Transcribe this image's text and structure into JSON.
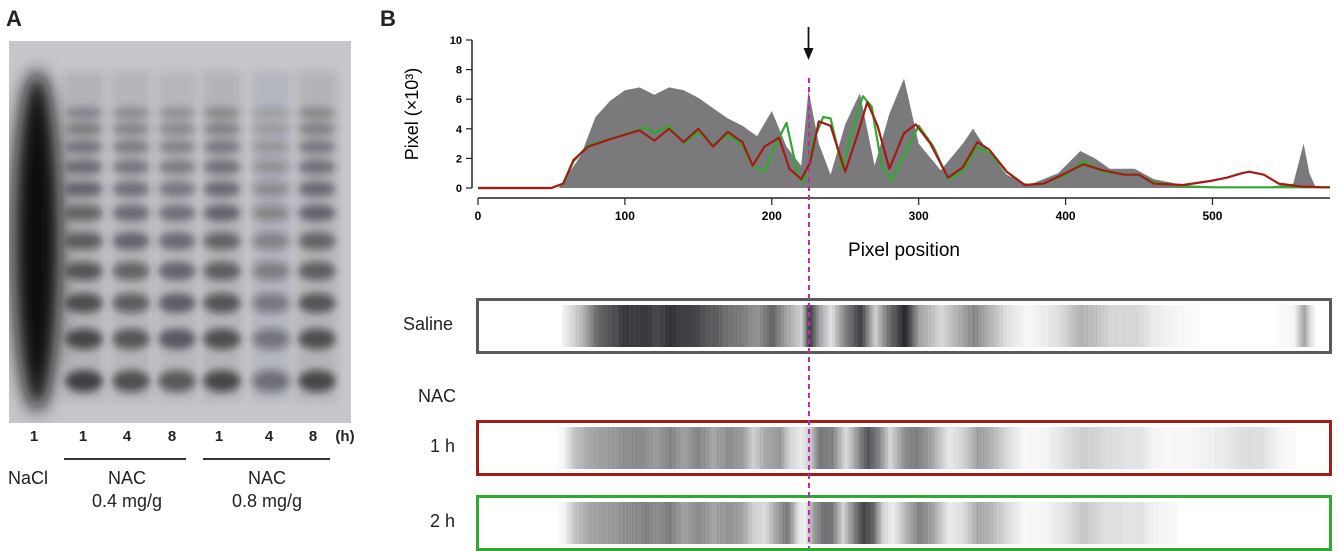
{
  "panelA": {
    "letter": "A",
    "lane_labels": [
      "1",
      "1",
      "4",
      "8",
      "1",
      "4",
      "8"
    ],
    "unit_label": "(h)",
    "group_nacl": "NaCl",
    "group_nac1_line1": "NAC",
    "group_nac1_line2": "0.4 mg/g",
    "group_nac2_line1": "NAC",
    "group_nac2_line2": "0.8 mg/g"
  },
  "panelB": {
    "letter": "B",
    "strip_saline": "Saline",
    "nac_heading": "NAC",
    "strip_1h": "1 h",
    "strip_2h": "2 h"
  },
  "colors": {
    "saline_fill": "#7a7a7c",
    "nac_1h": "#a11c14",
    "nac_2h": "#2eab2e",
    "marker_line": "#c02ab0"
  },
  "chart_data": {
    "type": "area",
    "xlabel": "Pixel position",
    "ylabel": "Pixel (×10³)",
    "xlim": [
      0,
      580
    ],
    "ylim": [
      0,
      10
    ],
    "x_ticks": [
      0,
      100,
      200,
      300,
      400,
      500
    ],
    "y_ticks": [
      0,
      2,
      4,
      6,
      8,
      10
    ],
    "arrow_x": 225,
    "series": [
      {
        "key": "saline",
        "x": [
          0,
          55,
          70,
          80,
          90,
          100,
          110,
          120,
          130,
          140,
          150,
          160,
          170,
          180,
          190,
          200,
          210,
          220,
          225,
          232,
          240,
          250,
          260,
          270,
          280,
          290,
          300,
          315,
          330,
          337,
          345,
          360,
          375,
          395,
          410,
          420,
          430,
          447,
          460,
          480,
          500,
          520,
          540,
          555,
          562,
          566,
          570,
          575,
          580
        ],
        "y": [
          0,
          0,
          2.2,
          4.8,
          5.9,
          6.6,
          6.8,
          6.3,
          6.8,
          6.6,
          6.1,
          5.4,
          4.7,
          4.2,
          3.5,
          5.2,
          2.8,
          1.5,
          6.6,
          3.0,
          0.9,
          4.3,
          6.4,
          1.5,
          5.0,
          7.4,
          3.0,
          1.2,
          3.0,
          4.0,
          2.8,
          0.9,
          0.2,
          1.0,
          2.5,
          2.0,
          1.3,
          1.3,
          0.6,
          0.2,
          0.1,
          0.1,
          0.1,
          0.3,
          3.0,
          1.0,
          0.1,
          0.05,
          0.05
        ]
      },
      {
        "key": "nac_2h",
        "x": [
          0,
          50,
          58,
          65,
          75,
          90,
          105,
          115,
          120,
          130,
          140,
          150,
          160,
          170,
          180,
          187,
          195,
          202,
          210,
          218,
          222,
          228,
          235,
          240,
          248,
          255,
          262,
          268,
          275,
          282,
          290,
          300,
          310,
          320,
          330,
          340,
          348,
          360,
          372,
          385,
          400,
          412,
          425,
          440,
          450,
          460,
          480,
          500,
          520,
          540,
          560,
          575,
          580
        ],
        "y": [
          0,
          0,
          0.3,
          1.8,
          2.9,
          3.3,
          3.8,
          4.1,
          3.7,
          4.2,
          3.0,
          3.8,
          2.9,
          3.6,
          2.9,
          1.5,
          1.1,
          2.8,
          4.4,
          0.8,
          0.4,
          3.1,
          4.8,
          4.7,
          1.3,
          4.0,
          6.2,
          5.5,
          1.4,
          0.5,
          2.2,
          4.2,
          2.8,
          0.6,
          1.1,
          2.8,
          2.4,
          1.1,
          0.2,
          0.3,
          0.9,
          1.8,
          1.1,
          0.9,
          0.9,
          0.4,
          0.1,
          0.05,
          0.05,
          0.05,
          0.05,
          0.05,
          0.05
        ]
      },
      {
        "key": "nac_1h",
        "x": [
          0,
          50,
          58,
          65,
          75,
          90,
          100,
          110,
          120,
          130,
          140,
          150,
          160,
          170,
          180,
          187,
          195,
          205,
          212,
          220,
          226,
          232,
          240,
          250,
          258,
          265,
          272,
          280,
          290,
          298,
          308,
          320,
          330,
          340,
          348,
          360,
          372,
          385,
          400,
          412,
          425,
          440,
          450,
          460,
          480,
          500,
          510,
          520,
          525,
          535,
          545,
          560,
          575,
          580
        ],
        "y": [
          0,
          0,
          0.3,
          1.9,
          2.8,
          3.3,
          3.6,
          3.9,
          3.2,
          4.0,
          3.1,
          4.0,
          2.8,
          3.8,
          3.1,
          1.5,
          2.8,
          3.4,
          1.3,
          0.6,
          1.7,
          4.5,
          4.2,
          1.1,
          3.5,
          5.8,
          4.2,
          1.3,
          3.7,
          4.3,
          3.0,
          0.7,
          1.4,
          3.1,
          2.6,
          1.1,
          0.2,
          0.3,
          1.0,
          1.6,
          1.2,
          0.9,
          0.9,
          0.3,
          0.2,
          0.5,
          0.7,
          1.0,
          1.1,
          0.9,
          0.3,
          0.1,
          0.05,
          0.05
        ]
      }
    ]
  }
}
